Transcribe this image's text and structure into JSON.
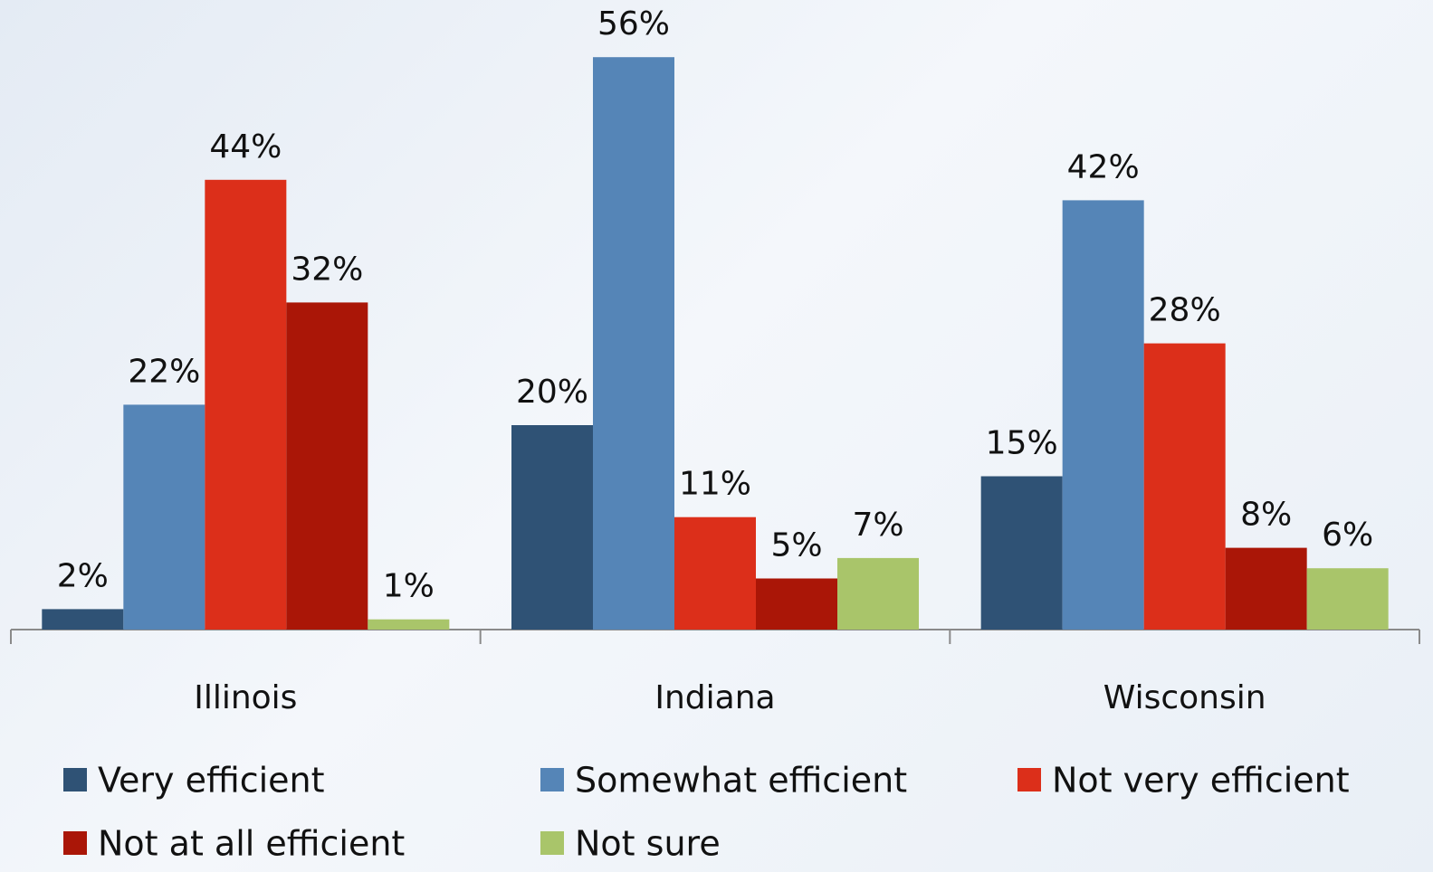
{
  "chart_data": {
    "type": "bar",
    "categories": [
      "Illinois",
      "Indiana",
      "Wisconsin"
    ],
    "series": [
      {
        "name": "Very efficient",
        "color": "#2f5275",
        "values": [
          2,
          20,
          15
        ],
        "value_labels": [
          "2%",
          "20%",
          "15%"
        ]
      },
      {
        "name": "Somewhat efficient",
        "color": "#5585b7",
        "values": [
          22,
          56,
          42
        ],
        "value_labels": [
          "22%",
          "56%",
          "42%"
        ]
      },
      {
        "name": "Not very efficient",
        "color": "#dc2f1a",
        "values": [
          44,
          11,
          28
        ],
        "value_labels": [
          "44%",
          "11%",
          "28%"
        ]
      },
      {
        "name": "Not at all efficient",
        "color": "#aa1607",
        "values": [
          32,
          5,
          8
        ],
        "value_labels": [
          "32%",
          "5%",
          "8%"
        ]
      },
      {
        "name": "Not sure",
        "color": "#a9c56a",
        "values": [
          1,
          7,
          6
        ],
        "value_labels": [
          "1%",
          "7%",
          "6%"
        ]
      }
    ]
  }
}
